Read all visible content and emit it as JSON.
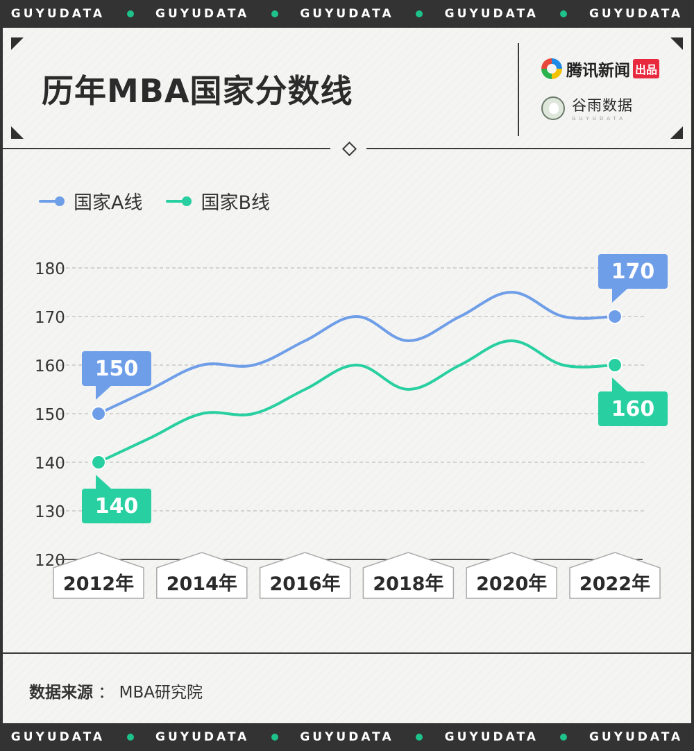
{
  "banner": {
    "text": "GUYUDATA",
    "dot_color": "#1ec28b"
  },
  "header": {
    "title": "历年MBA国家分数线"
  },
  "logos": {
    "tencent": {
      "name": "腾讯新闻",
      "badge": "出品"
    },
    "guyu": {
      "name": "谷雨数据",
      "sub": "GUYUDATA"
    }
  },
  "colors": {
    "series_a": "#6f9ee8",
    "series_b": "#28cfa0",
    "grid": "#c8c8c8",
    "axis": "#555555"
  },
  "chart_data": {
    "type": "line",
    "categories": [
      "2012年",
      "2014年",
      "2016年",
      "2018年",
      "2020年",
      "2022年"
    ],
    "x": [
      2012,
      2013,
      2014,
      2015,
      2016,
      2017,
      2018,
      2019,
      2020,
      2021,
      2022
    ],
    "series": [
      {
        "name": "国家A线",
        "values": [
          150,
          155,
          160,
          160,
          165,
          170,
          165,
          170,
          175,
          170,
          170
        ]
      },
      {
        "name": "国家B线",
        "values": [
          140,
          145,
          150,
          150,
          155,
          160,
          155,
          160,
          165,
          160,
          160
        ]
      }
    ],
    "yticks": [
      "120",
      "130",
      "140",
      "150",
      "160",
      "170",
      "180"
    ],
    "ylim": [
      120,
      180
    ],
    "grid": true,
    "legend_position": "top-left",
    "annotations": [
      {
        "series": 0,
        "x": 2012,
        "label": "150"
      },
      {
        "series": 0,
        "x": 2022,
        "label": "170"
      },
      {
        "series": 1,
        "x": 2012,
        "label": "140"
      },
      {
        "series": 1,
        "x": 2022,
        "label": "160"
      }
    ]
  },
  "footer": {
    "source_key": "数据来源",
    "source_sep": "：",
    "source_value": "MBA研究院"
  }
}
